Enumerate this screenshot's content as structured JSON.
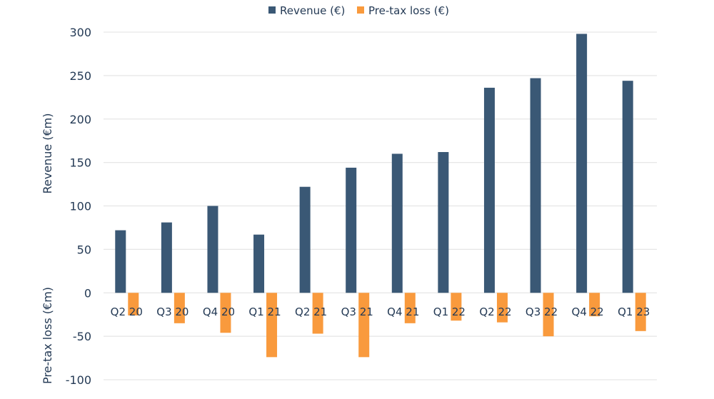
{
  "chart_data": {
    "type": "bar",
    "title": "",
    "categories": [
      "Q2 20",
      "Q3 20",
      "Q4 20",
      "Q1 21",
      "Q2 21",
      "Q3 21",
      "Q4 21",
      "Q1 22",
      "Q2 22",
      "Q3 22",
      "Q4 22",
      "Q1 23"
    ],
    "series": [
      {
        "name": "Revenue (€)",
        "color": "#3a5875",
        "values": [
          72,
          81,
          100,
          67,
          122,
          144,
          160,
          162,
          236,
          247,
          298,
          244
        ]
      },
      {
        "name": "Pre-tax loss (€)",
        "color": "#f99a3d",
        "values": [
          -26,
          -35,
          -46,
          -74,
          -47,
          -74,
          -35,
          -32,
          -34,
          -50,
          -27,
          -44
        ]
      }
    ],
    "ylabel_top": "Revenue (€m)",
    "ylabel_bottom": "Pre-tax loss (€m)",
    "ylim": [
      -100,
      300
    ],
    "yticks": [
      300,
      250,
      200,
      150,
      100,
      50,
      0,
      -50,
      -100
    ],
    "grid": true,
    "legend_position": "top-center"
  }
}
